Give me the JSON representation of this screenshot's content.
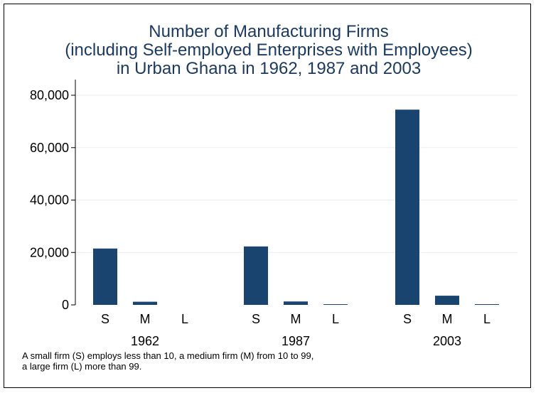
{
  "chart_data": {
    "type": "bar",
    "title_lines": [
      "Number of Manufacturing Firms",
      "(including Self-employed Enterprises with Employees)",
      "in Urban Ghana in 1962, 1987 and 2003"
    ],
    "groups": [
      "1962",
      "1987",
      "2003"
    ],
    "categories": [
      "S",
      "M",
      "L"
    ],
    "series": [
      {
        "group": "1962",
        "values": [
          21500,
          1200,
          0
        ]
      },
      {
        "group": "1987",
        "values": [
          22300,
          1300,
          100
        ]
      },
      {
        "group": "2003",
        "values": [
          74500,
          3500,
          100
        ]
      }
    ],
    "ylim": [
      0,
      80000
    ],
    "yticks": [
      0,
      20000,
      40000,
      60000,
      80000
    ],
    "ytick_labels": [
      "0",
      "20,000",
      "40,000",
      "60,000",
      "80,000"
    ],
    "grid": true,
    "bar_color": "#1a4470",
    "title_color": "#1a3a63",
    "note_lines": [
      "A small firm (S) employs less than 10, a medium firm (M) from 10 to 99,",
      "a large firm (L) more than 99."
    ]
  }
}
